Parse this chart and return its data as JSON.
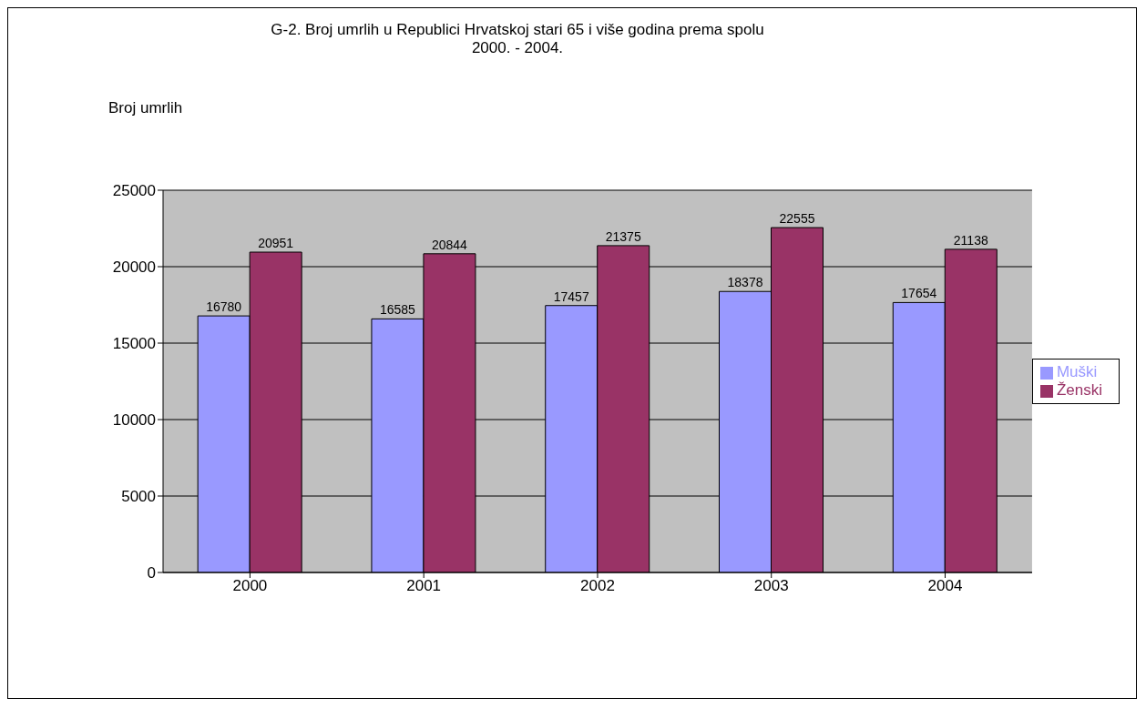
{
  "chart_data": {
    "type": "bar",
    "title": "G-2. Broj umrlih u Republici Hrvatskoj stari 65 i više godina prema spolu",
    "subtitle": "2000. - 2004.",
    "ylabel": "Broj umrlih",
    "categories": [
      "2000",
      "2001",
      "2002",
      "2003",
      "2004"
    ],
    "series": [
      {
        "name": "Muški",
        "color": "#9999ff",
        "values": [
          16780,
          16585,
          17457,
          18378,
          17654
        ]
      },
      {
        "name": "Ženski",
        "color": "#993366",
        "values": [
          20951,
          20844,
          21375,
          22555,
          21138
        ]
      }
    ],
    "ylim": [
      0,
      25000
    ],
    "yticks": [
      0,
      5000,
      10000,
      15000,
      20000,
      25000
    ],
    "grid": "y",
    "legend": "right",
    "data_labels": true
  }
}
